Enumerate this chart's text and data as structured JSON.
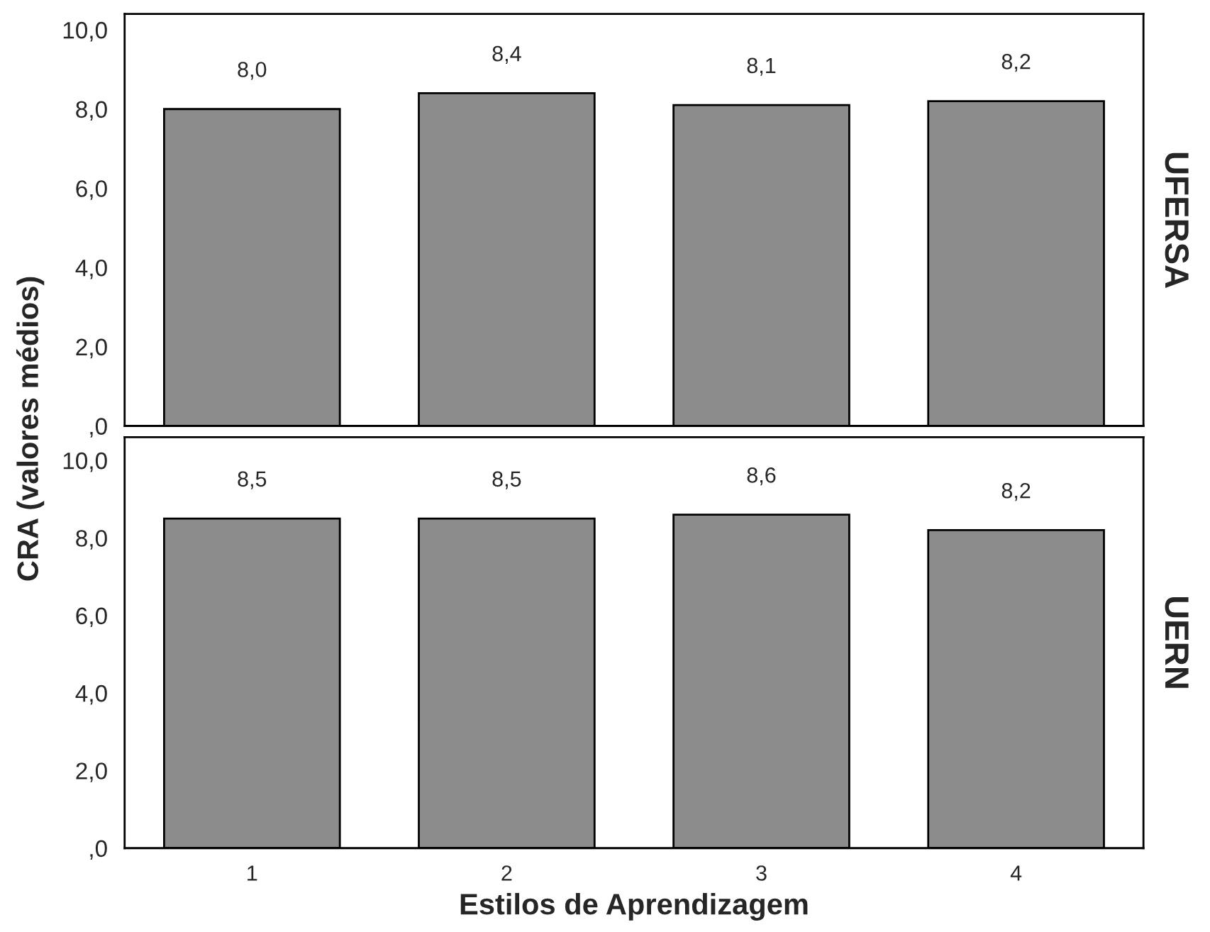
{
  "chart_data": [
    {
      "type": "bar",
      "categories": [
        "1",
        "2",
        "3",
        "4"
      ],
      "values": [
        8.0,
        8.4,
        8.1,
        8.2
      ],
      "value_labels": [
        "8,0",
        "8,4",
        "8,1",
        "8,2"
      ],
      "color": "#8c8c8c",
      "ylabel": "CRA (valores médios)",
      "y2label": "UFERSA",
      "ylim": [
        0,
        10.4
      ],
      "yticks": [
        {
          "value": 0,
          "label": ",0"
        },
        {
          "value": 2,
          "label": "2,0"
        },
        {
          "value": 4,
          "label": "4,0"
        },
        {
          "value": 6,
          "label": "6,0"
        },
        {
          "value": 8,
          "label": "8,0"
        },
        {
          "value": 10,
          "label": "10,0"
        }
      ],
      "tick_labels": "y",
      "grid": false,
      "legend": false
    },
    {
      "type": "bar",
      "categories": [
        "1",
        "2",
        "3",
        "4"
      ],
      "values": [
        8.5,
        8.5,
        8.6,
        8.2
      ],
      "value_labels": [
        "8,5",
        "8,5",
        "8,6",
        "8,2"
      ],
      "color": "#8c8c8c",
      "xlabel": "Estilos de Aprendizagem",
      "y2label": "UERN",
      "ylim": [
        0,
        10.6
      ],
      "yticks": [
        {
          "value": 0,
          "label": ",0"
        },
        {
          "value": 2,
          "label": "2,0"
        },
        {
          "value": 4,
          "label": "4,0"
        },
        {
          "value": 6,
          "label": "6,0"
        },
        {
          "value": 8,
          "label": "8,0"
        },
        {
          "value": 10,
          "label": "10,0"
        }
      ],
      "grid": false,
      "legend": false
    }
  ]
}
